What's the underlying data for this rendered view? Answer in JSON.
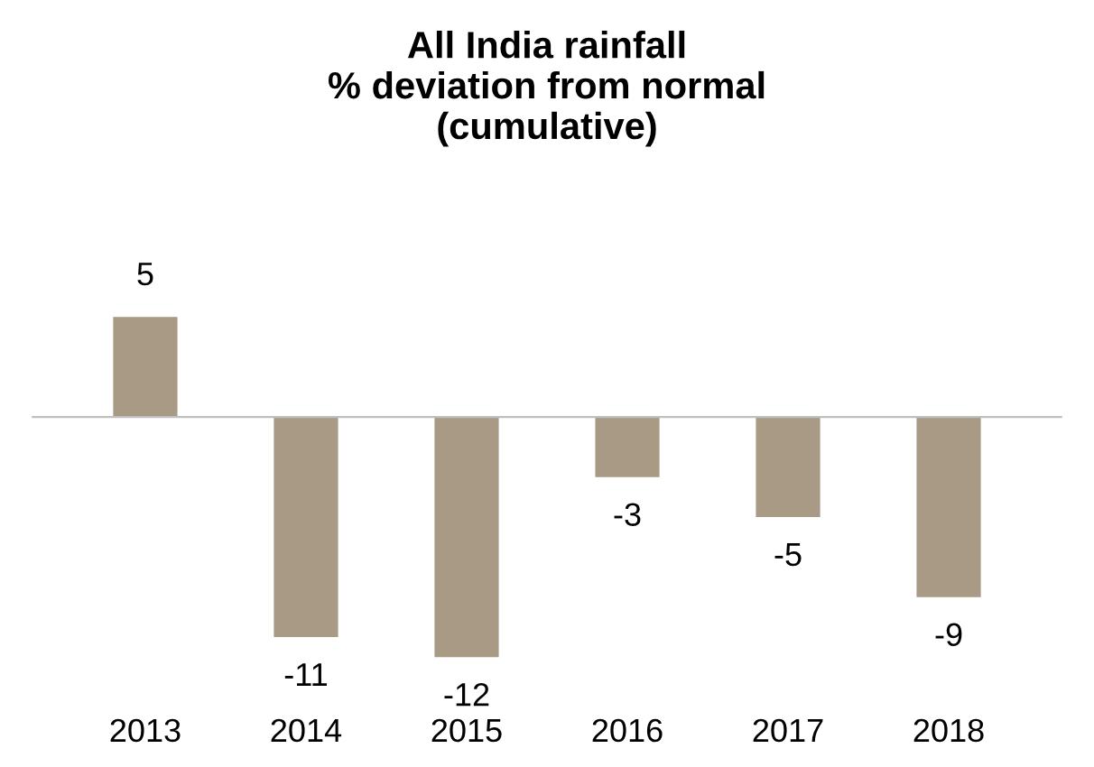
{
  "chart_data": {
    "type": "bar",
    "title": "All India rainfall\n% deviation from normal\n(cumulative)",
    "categories": [
      "2013",
      "2014",
      "2015",
      "2016",
      "2017",
      "2018"
    ],
    "values": [
      5,
      -11,
      -12,
      -3,
      -5,
      -9
    ],
    "color": "#a89a85",
    "data_labels": true,
    "tick_labels": "x",
    "grid": false
  }
}
